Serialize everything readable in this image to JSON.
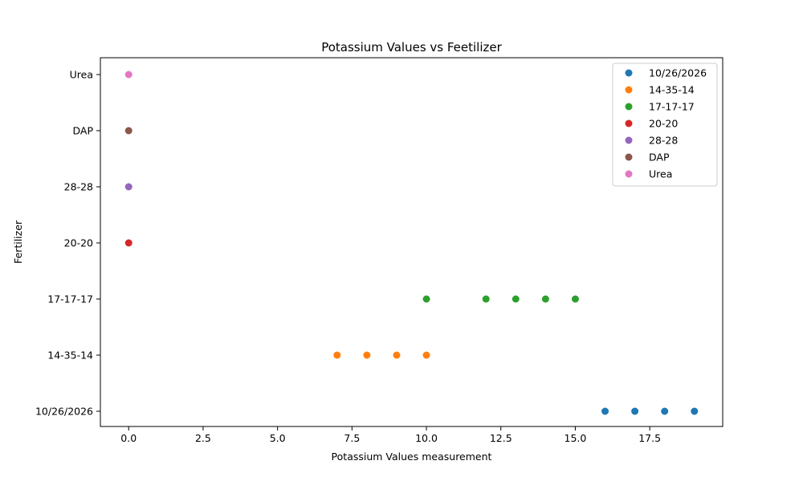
{
  "chart_data": {
    "type": "scatter",
    "title": "Potassium Values vs Feetilizer",
    "xlabel": "Potassium Values measurement",
    "ylabel": "Fertilizer",
    "xlim": [
      -0.95,
      19.95
    ],
    "xticks": [
      0.0,
      2.5,
      5.0,
      7.5,
      10.0,
      12.5,
      15.0,
      17.5
    ],
    "xtick_labels": [
      "0.0",
      "2.5",
      "5.0",
      "7.5",
      "10.0",
      "12.5",
      "15.0",
      "17.5"
    ],
    "categories": [
      "10/26/2026",
      "14-35-14",
      "17-17-17",
      "20-20",
      "28-28",
      "DAP",
      "Urea"
    ],
    "grid": false,
    "legend_position": "top-right",
    "series": [
      {
        "name": "10/26/2026",
        "color": "#1f77b4",
        "x": [
          16,
          17,
          18,
          19
        ]
      },
      {
        "name": "14-35-14",
        "color": "#ff7f0e",
        "x": [
          7,
          8,
          9,
          10
        ]
      },
      {
        "name": "17-17-17",
        "color": "#2ca02c",
        "x": [
          10,
          12,
          13,
          14,
          15
        ]
      },
      {
        "name": "20-20",
        "color": "#d62728",
        "x": [
          0
        ]
      },
      {
        "name": "28-28",
        "color": "#9467bd",
        "x": [
          0
        ]
      },
      {
        "name": "DAP",
        "color": "#8c564b",
        "x": [
          0
        ]
      },
      {
        "name": "Urea",
        "color": "#e377c2",
        "x": [
          0
        ]
      }
    ]
  }
}
